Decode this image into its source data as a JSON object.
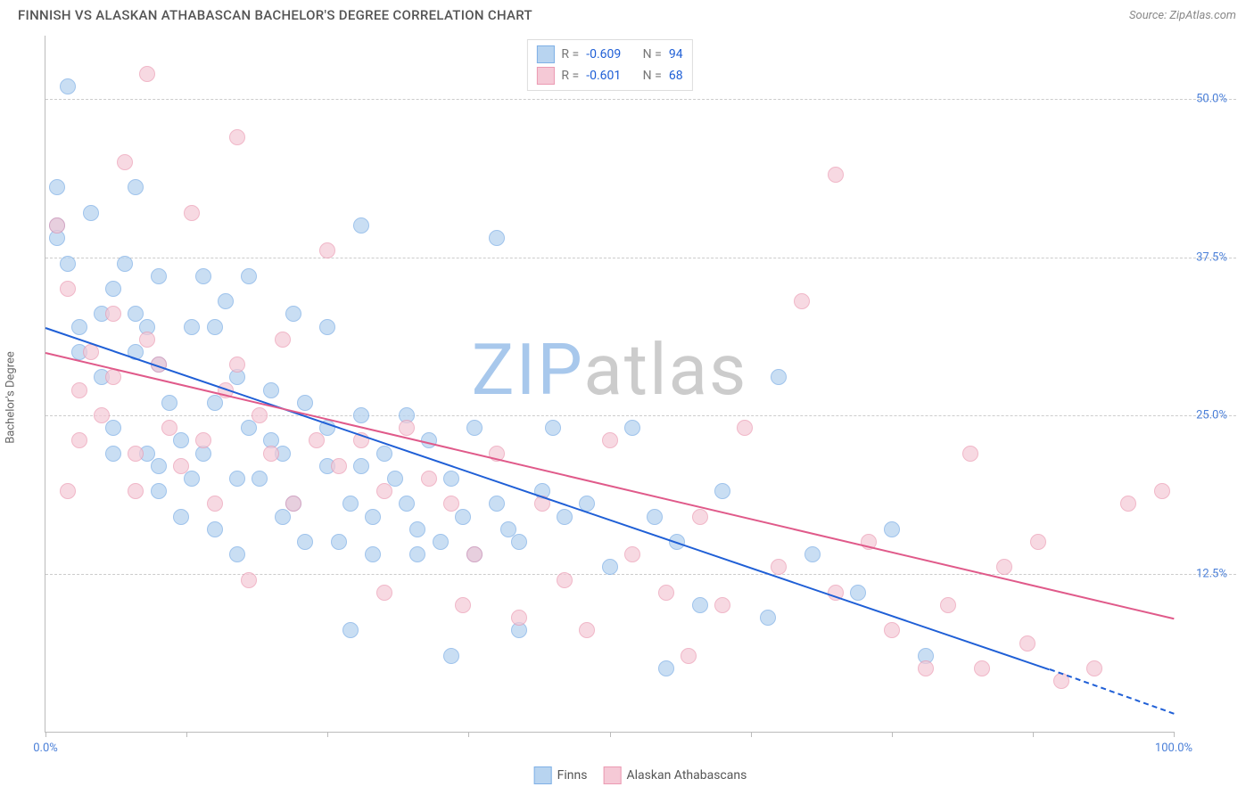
{
  "title": "FINNISH VS ALASKAN ATHABASCAN BACHELOR'S DEGREE CORRELATION CHART",
  "source": "Source: ZipAtlas.com",
  "ylabel": "Bachelor's Degree",
  "watermark_a": "ZIP",
  "watermark_b": "atlas",
  "watermark_color_a": "#a8c8ec",
  "watermark_color_b": "#cccccc",
  "xlim": [
    0,
    100
  ],
  "ylim": [
    0,
    55
  ],
  "xticks": [
    0,
    12.5,
    25,
    37.5,
    50,
    62.5,
    75,
    87.5,
    100
  ],
  "xtick_labels": {
    "0": "0.0%",
    "100": "100.0%"
  },
  "yticks": [
    12.5,
    25,
    37.5,
    50
  ],
  "ytick_labels": [
    "12.5%",
    "25.0%",
    "37.5%",
    "50.0%"
  ],
  "ytick_color": "#4a7fd8",
  "xtick_color": "#4a7fd8",
  "grid_color": "#cccccc",
  "series": [
    {
      "name": "Finns",
      "color_fill": "#b8d4f0",
      "color_stroke": "#7fb0e6",
      "marker_radius": 9,
      "marker_opacity": 0.75,
      "trend": {
        "x1": 0,
        "y1": 32,
        "x2": 89,
        "y2": 5,
        "color": "#1f5fd6",
        "extrap_x2": 100,
        "extrap_y2": 1.5
      },
      "R": "-0.609",
      "N": "94",
      "points": [
        [
          1,
          43
        ],
        [
          1,
          40
        ],
        [
          1,
          39
        ],
        [
          2,
          37
        ],
        [
          2,
          51
        ],
        [
          3,
          32
        ],
        [
          3,
          30
        ],
        [
          4,
          41
        ],
        [
          5,
          33
        ],
        [
          5,
          28
        ],
        [
          6,
          35
        ],
        [
          6,
          24
        ],
        [
          6,
          22
        ],
        [
          7,
          37
        ],
        [
          8,
          33
        ],
        [
          8,
          43
        ],
        [
          8,
          30
        ],
        [
          9,
          32
        ],
        [
          9,
          22
        ],
        [
          10,
          36
        ],
        [
          10,
          29
        ],
        [
          10,
          21
        ],
        [
          10,
          19
        ],
        [
          11,
          26
        ],
        [
          12,
          23
        ],
        [
          12,
          17
        ],
        [
          13,
          32
        ],
        [
          13,
          20
        ],
        [
          14,
          36
        ],
        [
          14,
          22
        ],
        [
          15,
          32
        ],
        [
          15,
          26
        ],
        [
          15,
          16
        ],
        [
          16,
          34
        ],
        [
          17,
          28
        ],
        [
          17,
          20
        ],
        [
          17,
          14
        ],
        [
          18,
          36
        ],
        [
          18,
          24
        ],
        [
          19,
          20
        ],
        [
          20,
          27
        ],
        [
          20,
          23
        ],
        [
          21,
          22
        ],
        [
          21,
          17
        ],
        [
          22,
          33
        ],
        [
          22,
          18
        ],
        [
          23,
          26
        ],
        [
          23,
          15
        ],
        [
          25,
          32
        ],
        [
          25,
          24
        ],
        [
          25,
          21
        ],
        [
          26,
          15
        ],
        [
          27,
          18
        ],
        [
          27,
          8
        ],
        [
          28,
          40
        ],
        [
          28,
          25
        ],
        [
          28,
          21
        ],
        [
          29,
          14
        ],
        [
          29,
          17
        ],
        [
          30,
          22
        ],
        [
          31,
          20
        ],
        [
          32,
          25
        ],
        [
          32,
          18
        ],
        [
          33,
          14
        ],
        [
          33,
          16
        ],
        [
          34,
          23
        ],
        [
          35,
          15
        ],
        [
          36,
          20
        ],
        [
          36,
          6
        ],
        [
          37,
          17
        ],
        [
          38,
          24
        ],
        [
          38,
          14
        ],
        [
          40,
          39
        ],
        [
          40,
          18
        ],
        [
          41,
          16
        ],
        [
          42,
          15
        ],
        [
          42,
          8
        ],
        [
          44,
          19
        ],
        [
          45,
          24
        ],
        [
          46,
          17
        ],
        [
          48,
          18
        ],
        [
          50,
          13
        ],
        [
          52,
          24
        ],
        [
          54,
          17
        ],
        [
          55,
          5
        ],
        [
          56,
          15
        ],
        [
          58,
          10
        ],
        [
          60,
          19
        ],
        [
          64,
          9
        ],
        [
          65,
          28
        ],
        [
          68,
          14
        ],
        [
          72,
          11
        ],
        [
          75,
          16
        ],
        [
          78,
          6
        ]
      ]
    },
    {
      "name": "Alaskan Athabascans",
      "color_fill": "#f5c9d6",
      "color_stroke": "#eb9ab2",
      "marker_radius": 9,
      "marker_opacity": 0.7,
      "trend": {
        "x1": 0,
        "y1": 30,
        "x2": 100,
        "y2": 9,
        "color": "#e05a8a"
      },
      "R": "-0.601",
      "N": "68",
      "points": [
        [
          1,
          40
        ],
        [
          2,
          35
        ],
        [
          2,
          19
        ],
        [
          3,
          27
        ],
        [
          3,
          23
        ],
        [
          4,
          30
        ],
        [
          5,
          25
        ],
        [
          6,
          33
        ],
        [
          6,
          28
        ],
        [
          7,
          45
        ],
        [
          8,
          22
        ],
        [
          8,
          19
        ],
        [
          9,
          31
        ],
        [
          9,
          52
        ],
        [
          10,
          29
        ],
        [
          11,
          24
        ],
        [
          12,
          21
        ],
        [
          13,
          41
        ],
        [
          14,
          23
        ],
        [
          15,
          18
        ],
        [
          16,
          27
        ],
        [
          17,
          29
        ],
        [
          17,
          47
        ],
        [
          18,
          12
        ],
        [
          19,
          25
        ],
        [
          20,
          22
        ],
        [
          21,
          31
        ],
        [
          22,
          18
        ],
        [
          24,
          23
        ],
        [
          25,
          38
        ],
        [
          26,
          21
        ],
        [
          28,
          23
        ],
        [
          30,
          11
        ],
        [
          30,
          19
        ],
        [
          32,
          24
        ],
        [
          34,
          20
        ],
        [
          36,
          18
        ],
        [
          37,
          10
        ],
        [
          38,
          14
        ],
        [
          40,
          22
        ],
        [
          42,
          9
        ],
        [
          44,
          18
        ],
        [
          46,
          12
        ],
        [
          48,
          8
        ],
        [
          50,
          23
        ],
        [
          52,
          14
        ],
        [
          55,
          11
        ],
        [
          57,
          6
        ],
        [
          58,
          17
        ],
        [
          60,
          10
        ],
        [
          62,
          24
        ],
        [
          65,
          13
        ],
        [
          67,
          34
        ],
        [
          70,
          44
        ],
        [
          70,
          11
        ],
        [
          73,
          15
        ],
        [
          75,
          8
        ],
        [
          78,
          5
        ],
        [
          80,
          10
        ],
        [
          82,
          22
        ],
        [
          83,
          5
        ],
        [
          85,
          13
        ],
        [
          87,
          7
        ],
        [
          88,
          15
        ],
        [
          90,
          4
        ],
        [
          93,
          5
        ],
        [
          96,
          18
        ],
        [
          99,
          19
        ]
      ]
    }
  ],
  "legend_top": {
    "R_label": "R =",
    "N_label": "N =",
    "value_color": "#1f5fd6"
  },
  "legend_bottom_labels": [
    "Finns",
    "Alaskan Athabascans"
  ]
}
